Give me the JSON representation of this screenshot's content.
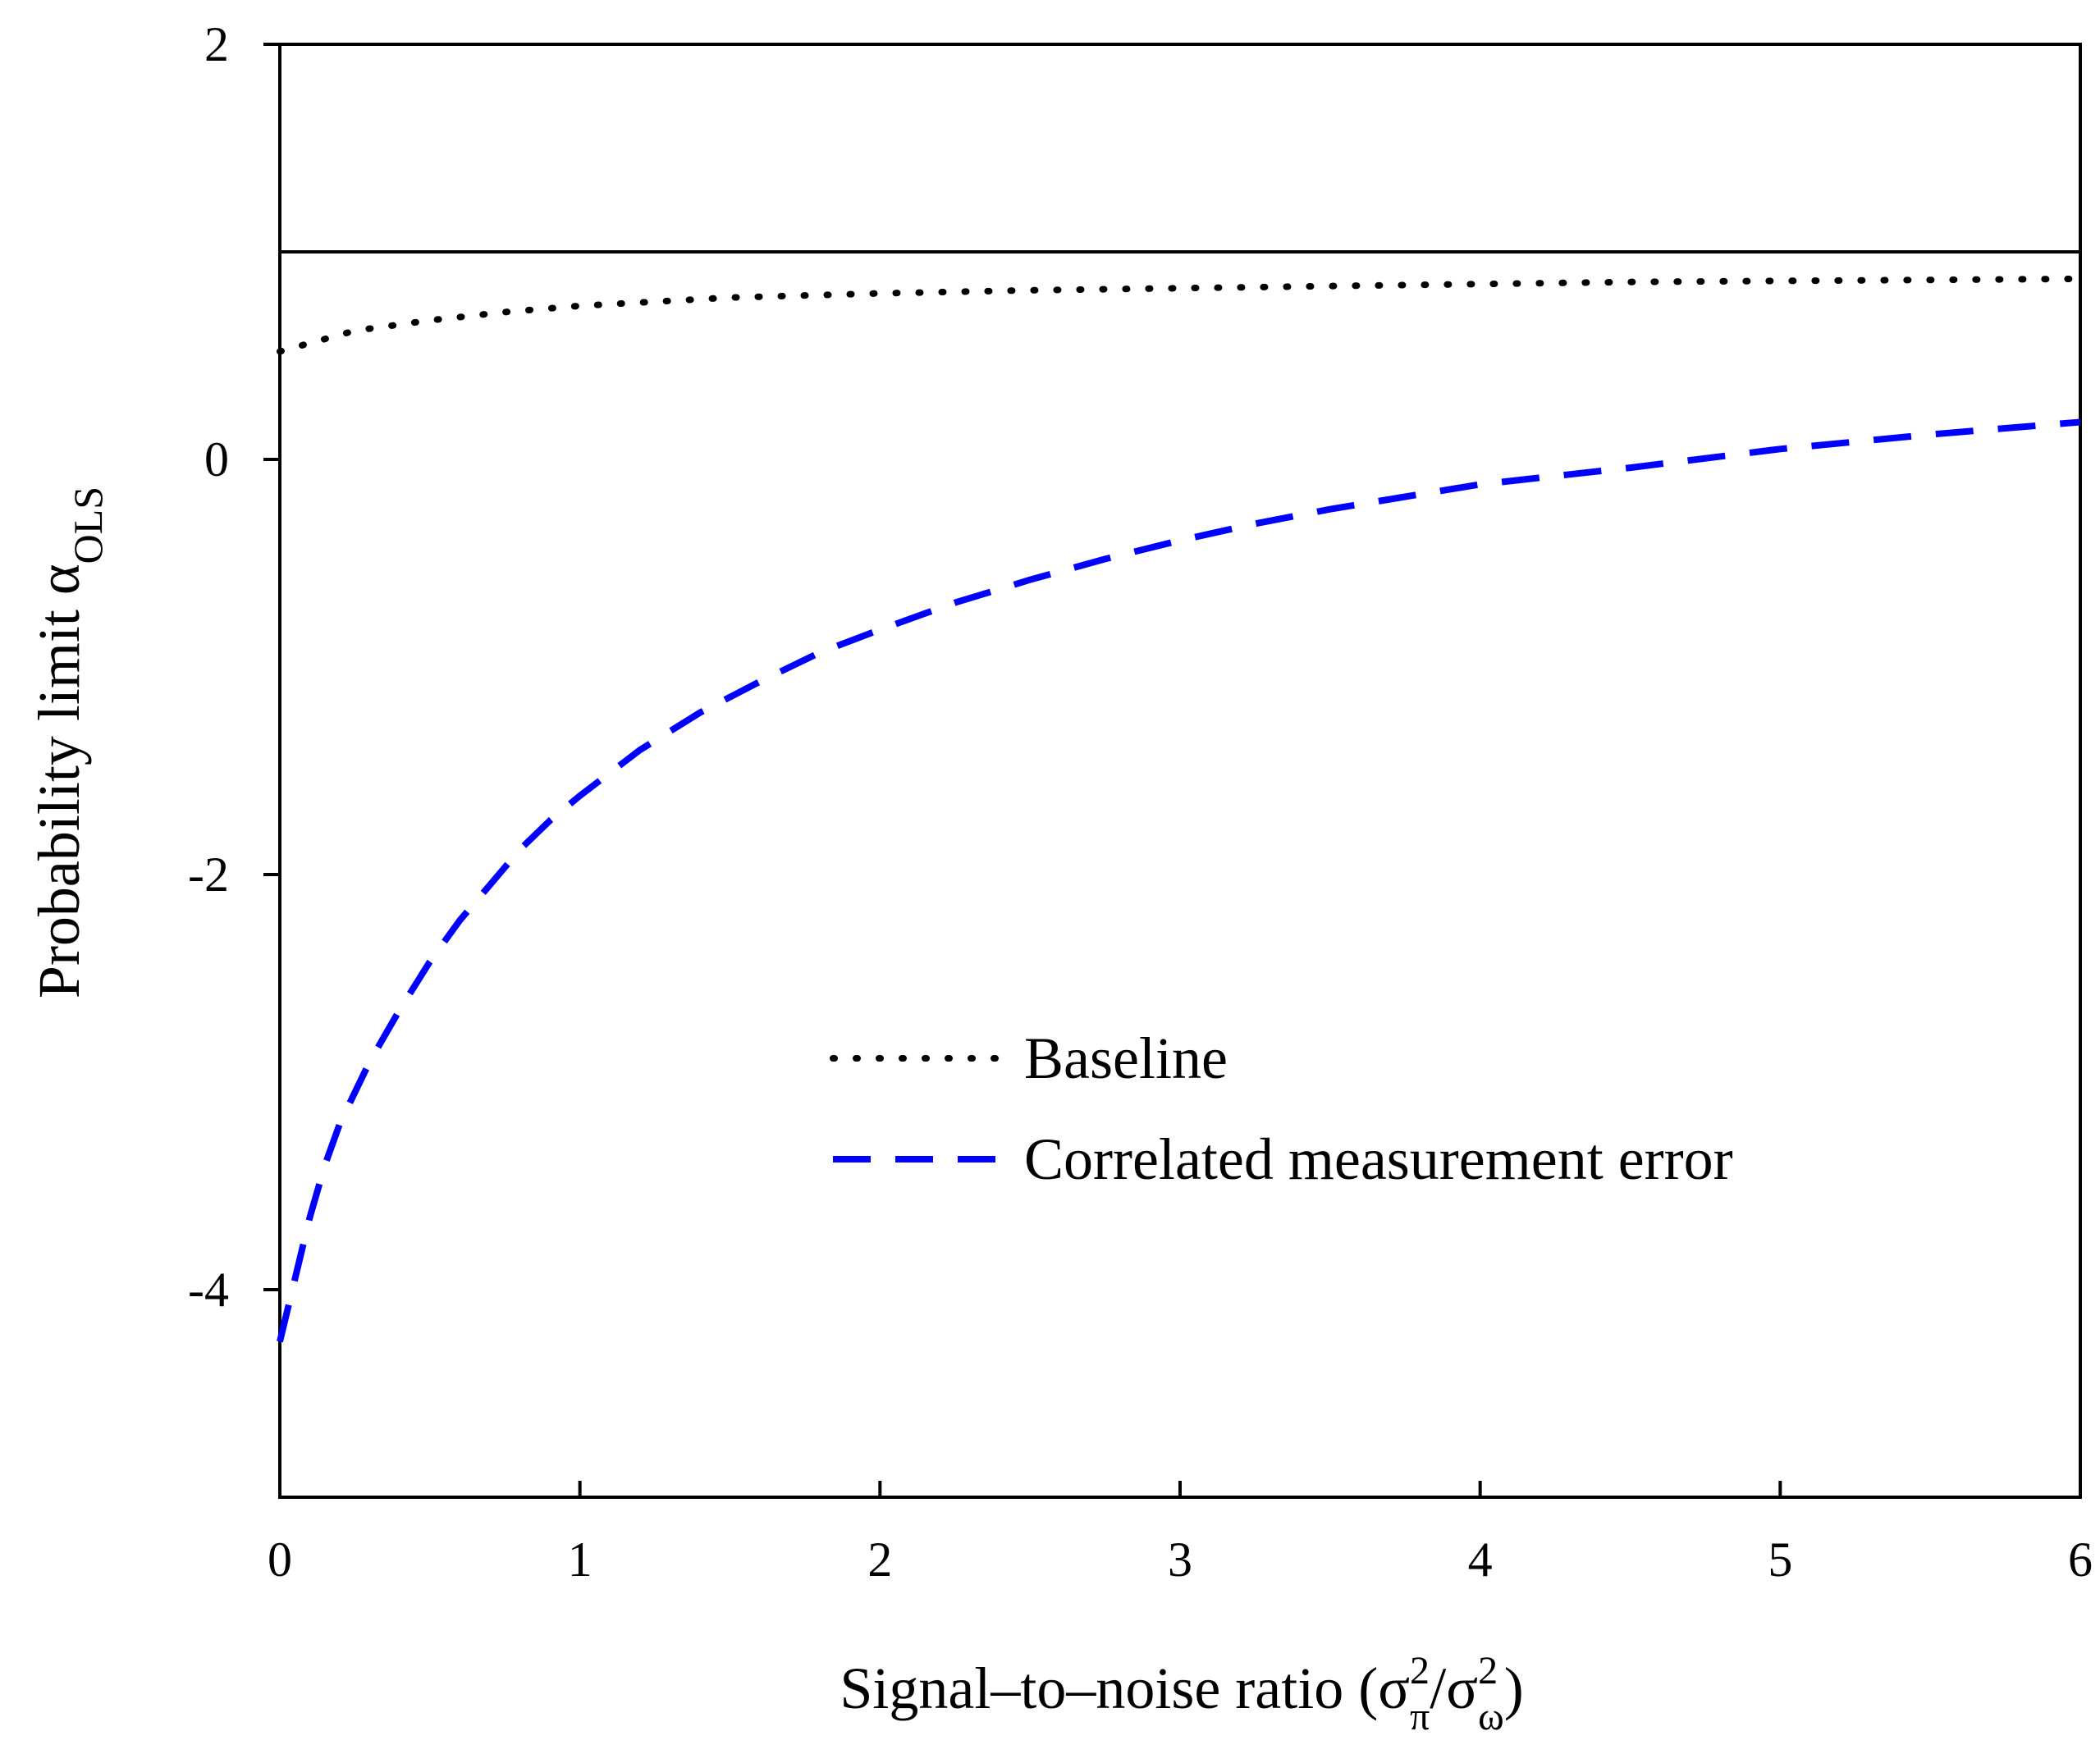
{
  "chart_data": {
    "type": "line",
    "xlabel": {
      "main": "Signal–to–noise ratio (σ",
      "sup1": "2",
      "sub1": "π",
      "mid": "/σ",
      "sup2": "2",
      "sub2": "ω",
      "end": ")"
    },
    "ylabel": {
      "main": "Probability limit α",
      "sub": "OLS"
    },
    "xlim": [
      0,
      6
    ],
    "ylim": [
      -5,
      2
    ],
    "xticks": [
      0,
      1,
      2,
      3,
      4,
      5,
      6
    ],
    "yticks": [
      2,
      0,
      -2,
      -4
    ],
    "xtick_labels": [
      "0",
      "1",
      "2",
      "3",
      "4",
      "5",
      "6"
    ],
    "ytick_labels": [
      "2",
      "0",
      "-2",
      "-4"
    ],
    "grid": false,
    "legend_position": "center-right",
    "reference_line": {
      "y": 1,
      "color": "#000000"
    },
    "series": [
      {
        "name": "Baseline",
        "style": "dotted",
        "color": "#000000",
        "x": [
          0,
          0.25,
          0.5,
          0.75,
          1,
          1.5,
          2,
          2.5,
          3,
          3.5,
          4,
          4.5,
          5,
          5.5,
          6
        ],
        "y": [
          0.52,
          0.62,
          0.67,
          0.71,
          0.74,
          0.78,
          0.8,
          0.815,
          0.825,
          0.835,
          0.845,
          0.855,
          0.86,
          0.865,
          0.87
        ]
      },
      {
        "name": "Correlated measurement error",
        "style": "dashed",
        "color": "#0000ff",
        "x": [
          0,
          0.05,
          0.1,
          0.15,
          0.2,
          0.3,
          0.4,
          0.5,
          0.6,
          0.7,
          0.8,
          0.9,
          1.0,
          1.2,
          1.4,
          1.6,
          1.8,
          2.0,
          2.25,
          2.5,
          2.75,
          3.0,
          3.25,
          3.5,
          3.75,
          4.0,
          4.5,
          5.0,
          5.5,
          6.0
        ],
        "y": [
          -4.25,
          -3.95,
          -3.65,
          -3.4,
          -3.2,
          -2.9,
          -2.65,
          -2.42,
          -2.22,
          -2.05,
          -1.88,
          -1.74,
          -1.62,
          -1.4,
          -1.22,
          -1.07,
          -0.93,
          -0.82,
          -0.69,
          -0.58,
          -0.48,
          -0.39,
          -0.31,
          -0.24,
          -0.18,
          -0.12,
          -0.04,
          0.05,
          0.12,
          0.18
        ]
      }
    ]
  }
}
